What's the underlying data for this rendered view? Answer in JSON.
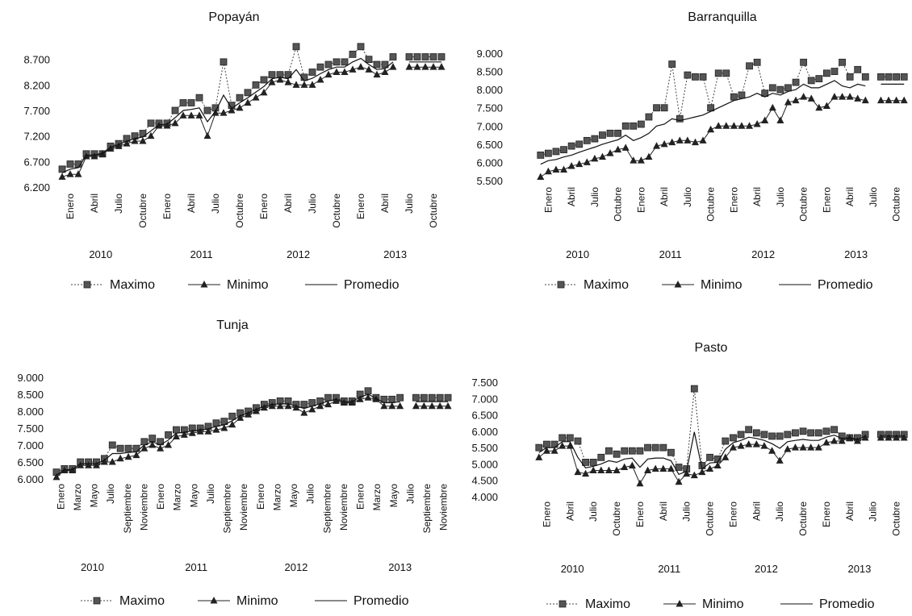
{
  "chart_data": [
    {
      "type": "line",
      "title": "Popayán",
      "ylim": [
        6200,
        9200
      ],
      "yticks": [
        6200,
        6700,
        7200,
        7700,
        8200,
        8700
      ],
      "ytick_labels": [
        "6.200",
        "6.700",
        "7.200",
        "7.700",
        "8.200",
        "8.700"
      ],
      "xtick_labels": [
        "Enero",
        "Abril",
        "Julio",
        "Octubre",
        "Enero",
        "Abril",
        "Julio",
        "Octubre",
        "Enero",
        "Abril",
        "Julio",
        "Octubre",
        "Enero",
        "Abril",
        "Julio",
        "Octubre"
      ],
      "years": [
        "2010",
        "2011",
        "2012",
        "2013"
      ],
      "legend": [
        "Maximo",
        "Minimo",
        "Promedio"
      ],
      "series": [
        {
          "name": "Maximo",
          "values": [
            6550,
            6650,
            6650,
            6850,
            6850,
            6850,
            7000,
            7050,
            7150,
            7200,
            7250,
            7450,
            7450,
            7450,
            7700,
            7850,
            7850,
            7950,
            7700,
            7750,
            8650,
            7800,
            7950,
            8050,
            8200,
            8300,
            8400,
            8400,
            8400,
            8950,
            8350,
            8450,
            8550,
            8600,
            8650,
            8650,
            8800,
            8950,
            8700,
            8600,
            8600,
            8750,
            null,
            8750,
            8750,
            8750,
            8750,
            8750
          ]
        },
        {
          "name": "Minimo",
          "values": [
            6400,
            6450,
            6450,
            6800,
            6800,
            6850,
            6950,
            7000,
            7050,
            7100,
            7100,
            7200,
            7400,
            7400,
            7450,
            7600,
            7600,
            7600,
            7200,
            7650,
            7650,
            7700,
            7750,
            7850,
            7950,
            8050,
            8250,
            8300,
            8250,
            8200,
            8200,
            8200,
            8300,
            8400,
            8450,
            8450,
            8500,
            8550,
            8500,
            8400,
            8450,
            8550,
            null,
            8550,
            8550,
            8550,
            8550,
            8550
          ]
        },
        {
          "name": "Promedio",
          "values": [
            6480,
            6550,
            6580,
            6820,
            6830,
            6860,
            6980,
            7030,
            7100,
            7150,
            7180,
            7300,
            7420,
            7430,
            7560,
            7700,
            7720,
            7750,
            7480,
            7680,
            8000,
            7740,
            7850,
            7950,
            8060,
            8170,
            8320,
            8350,
            8320,
            8500,
            8280,
            8330,
            8420,
            8500,
            8550,
            8550,
            8650,
            8720,
            8600,
            8500,
            8520,
            8650,
            null,
            8650,
            8650,
            8650,
            8650,
            8650
          ]
        }
      ]
    },
    {
      "type": "line",
      "title": "Barranquilla",
      "ylim": [
        5500,
        9000
      ],
      "yticks": [
        5500,
        6000,
        6500,
        7000,
        7500,
        8000,
        8500,
        9000
      ],
      "ytick_labels": [
        "5.500",
        "6.000",
        "6.500",
        "7.000",
        "7.500",
        "8.000",
        "8.500",
        "9.000"
      ],
      "xtick_labels": [
        "Enero",
        "Abril",
        "Julio",
        "Octubre",
        "Enero",
        "Abril",
        "Julio",
        "Octubre",
        "Enero",
        "Abril",
        "Julio",
        "Octubre",
        "Enero",
        "Abril",
        "Julio",
        "Octubre"
      ],
      "years": [
        "2010",
        "2011",
        "2012",
        "2013"
      ],
      "legend": [
        "Maximo",
        "Minimo",
        "Promedio"
      ],
      "series": [
        {
          "name": "Maximo",
          "values": [
            6200,
            6250,
            6300,
            6350,
            6450,
            6500,
            6600,
            6650,
            6750,
            6800,
            6800,
            7000,
            7000,
            7050,
            7250,
            7500,
            7500,
            8700,
            7200,
            8400,
            8350,
            8350,
            7500,
            8450,
            8450,
            7800,
            7850,
            8650,
            8750,
            7900,
            8050,
            8000,
            8050,
            8200,
            8750,
            8250,
            8300,
            8450,
            8500,
            8750,
            8350,
            8550,
            8350,
            null,
            8350,
            8350,
            8350,
            8350
          ]
        },
        {
          "name": "Minimo",
          "values": [
            5600,
            5750,
            5800,
            5800,
            5900,
            5950,
            6000,
            6100,
            6150,
            6250,
            6350,
            6400,
            6050,
            6050,
            6150,
            6450,
            6500,
            6550,
            6600,
            6600,
            6550,
            6600,
            6900,
            7000,
            7000,
            7000,
            7000,
            7000,
            7050,
            7150,
            7500,
            7150,
            7650,
            7700,
            7800,
            7750,
            7500,
            7550,
            7800,
            7800,
            7800,
            7750,
            7700,
            null,
            7700,
            7700,
            7700,
            7700
          ]
        },
        {
          "name": "Promedio",
          "values": [
            5950,
            6050,
            6080,
            6150,
            6200,
            6280,
            6350,
            6420,
            6500,
            6560,
            6620,
            6750,
            6600,
            6680,
            6800,
            7000,
            7050,
            7200,
            7150,
            7200,
            7250,
            7300,
            7400,
            7500,
            7600,
            7700,
            7750,
            7800,
            7900,
            7800,
            7900,
            7850,
            7950,
            8000,
            8150,
            8050,
            8050,
            8150,
            8250,
            8100,
            8050,
            8150,
            8100,
            null,
            8150,
            8150,
            8150,
            8150
          ]
        }
      ]
    },
    {
      "type": "line",
      "title": "Tunja",
      "ylim": [
        6000,
        9000
      ],
      "yticks": [
        6000,
        6500,
        7000,
        7500,
        8000,
        8500,
        9000
      ],
      "ytick_labels": [
        "6.000",
        "6.500",
        "7.000",
        "7.500",
        "8.000",
        "8.500",
        "9.000"
      ],
      "xtick_labels": [
        "Enero",
        "Marzo",
        "Mayo",
        "Julio",
        "Septiembre",
        "Noviembre",
        "Enero",
        "Marzo",
        "Mayo",
        "Julio",
        "Septiembre",
        "Noviembre",
        "Enero",
        "Marzo",
        "Mayo",
        "Julio",
        "Septiembre",
        "Noviembre",
        "Enero",
        "Marzo",
        "Mayo",
        "Julio",
        "Septiembre",
        "Noviembre"
      ],
      "years": [
        "2010",
        "2011",
        "2012",
        "2013"
      ],
      "legend": [
        "Maximo",
        "Minimo",
        "Promedio"
      ],
      "series": [
        {
          "name": "Maximo",
          "values": [
            6200,
            6300,
            6300,
            6500,
            6500,
            6500,
            6600,
            7000,
            6900,
            6900,
            6900,
            7100,
            7200,
            7100,
            7300,
            7450,
            7450,
            7500,
            7500,
            7550,
            7650,
            7700,
            7850,
            7950,
            8000,
            8100,
            8200,
            8250,
            8300,
            8300,
            8200,
            8200,
            8250,
            8300,
            8400,
            8400,
            8300,
            8300,
            8500,
            8600,
            8400,
            8350,
            8350,
            8400,
            null,
            8400,
            8400,
            8400,
            8400,
            8400
          ]
        },
        {
          "name": "Minimo",
          "values": [
            6050,
            6250,
            6250,
            6400,
            6400,
            6400,
            6500,
            6500,
            6600,
            6650,
            6700,
            6900,
            7000,
            6900,
            7000,
            7250,
            7300,
            7350,
            7400,
            7400,
            7450,
            7500,
            7600,
            7800,
            7900,
            8000,
            8100,
            8150,
            8150,
            8150,
            8100,
            7950,
            8050,
            8150,
            8200,
            8300,
            8250,
            8250,
            8350,
            8400,
            8350,
            8150,
            8150,
            8150,
            null,
            8150,
            8150,
            8150,
            8150,
            8150
          ]
        },
        {
          "name": "Promedio",
          "values": [
            6120,
            6270,
            6280,
            6450,
            6450,
            6450,
            6550,
            6750,
            6750,
            6780,
            6800,
            7000,
            7100,
            7000,
            7150,
            7350,
            7380,
            7420,
            7450,
            7480,
            7550,
            7600,
            7720,
            7870,
            7950,
            8050,
            8150,
            8200,
            8220,
            8220,
            8150,
            8080,
            8150,
            8220,
            8300,
            8350,
            8280,
            8280,
            8420,
            8500,
            8380,
            8250,
            8250,
            8280,
            null,
            8280,
            8280,
            8280,
            8280,
            8280
          ]
        }
      ]
    },
    {
      "type": "line",
      "title": "Pasto",
      "ylim": [
        4000,
        7500
      ],
      "yticks": [
        4000,
        4500,
        5000,
        5500,
        6000,
        6500,
        7000,
        7500
      ],
      "ytick_labels": [
        "4.000",
        "4.500",
        "5.000",
        "5.500",
        "6.000",
        "6.500",
        "7.000",
        "7.500"
      ],
      "xtick_labels": [
        "Enero",
        "Abril",
        "Julio",
        "Octubre",
        "Enero",
        "Abril",
        "Julio",
        "Octubre",
        "Enero",
        "Abril",
        "Julio",
        "Octubre",
        "Enero",
        "Abril",
        "Julio",
        "Octubre"
      ],
      "years": [
        "2010",
        "2011",
        "2012",
        "2013"
      ],
      "legend": [
        "Maximo",
        "Minimo",
        "Promedio"
      ],
      "series": [
        {
          "name": "Maximo",
          "values": [
            5500,
            5600,
            5600,
            5800,
            5800,
            5700,
            5050,
            5050,
            5200,
            5400,
            5300,
            5400,
            5400,
            5400,
            5500,
            5500,
            5500,
            5350,
            4900,
            4850,
            7300,
            4950,
            5200,
            5150,
            5700,
            5800,
            5900,
            6050,
            5950,
            5900,
            5850,
            5850,
            5900,
            5950,
            6000,
            5950,
            5950,
            6000,
            6050,
            5850,
            5800,
            5800,
            5900,
            null,
            5900,
            5900,
            5900,
            5900
          ]
        },
        {
          "name": "Minimo",
          "values": [
            5200,
            5400,
            5400,
            5550,
            5550,
            4750,
            4700,
            4800,
            4800,
            4800,
            4800,
            4900,
            4950,
            4400,
            4800,
            4850,
            4850,
            4850,
            4450,
            4700,
            4650,
            4750,
            4850,
            4950,
            5200,
            5500,
            5550,
            5600,
            5600,
            5550,
            5400,
            5100,
            5450,
            5500,
            5500,
            5500,
            5500,
            5650,
            5700,
            5700,
            5800,
            5700,
            5800,
            null,
            5800,
            5800,
            5800,
            5800
          ]
        },
        {
          "name": "Promedio",
          "values": [
            5350,
            5500,
            5500,
            5680,
            5680,
            5200,
            4880,
            4930,
            5000,
            5100,
            5050,
            5150,
            5180,
            4900,
            5150,
            5180,
            5180,
            5100,
            4680,
            4780,
            5980,
            4850,
            5030,
            5050,
            5450,
            5650,
            5720,
            5820,
            5780,
            5720,
            5620,
            5480,
            5680,
            5720,
            5750,
            5720,
            5720,
            5820,
            5880,
            5780,
            5800,
            5750,
            5850,
            null,
            5850,
            5850,
            5850,
            5850
          ]
        }
      ]
    }
  ]
}
